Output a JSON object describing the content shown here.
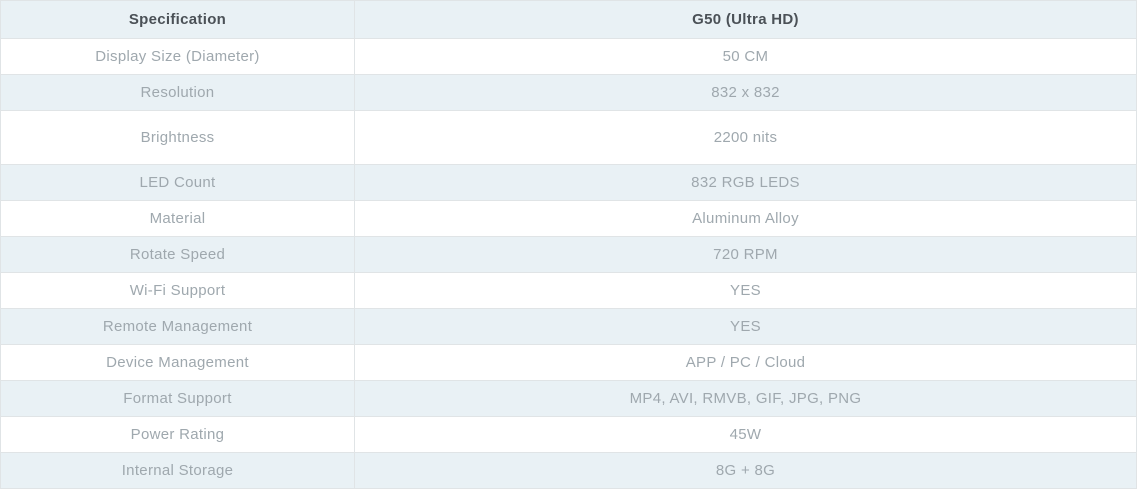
{
  "table": {
    "columns": [
      {
        "label": "Specification"
      },
      {
        "label": "G50 (Ultra HD)"
      }
    ],
    "rows": [
      {
        "spec": "Display Size (Diameter)",
        "value": "50 CM"
      },
      {
        "spec": "Resolution",
        "value": "832 x 832"
      },
      {
        "spec": "Brightness",
        "value": "2200 nits"
      },
      {
        "spec": "LED Count",
        "value": "832 RGB LEDS"
      },
      {
        "spec": "Material",
        "value": "Aluminum Alloy"
      },
      {
        "spec": "Rotate Speed",
        "value": "720 RPM"
      },
      {
        "spec": "Wi-Fi Support",
        "value": "YES"
      },
      {
        "spec": "Remote Management",
        "value": "YES"
      },
      {
        "spec": "Device Management",
        "value": "APP / PC / Cloud"
      },
      {
        "spec": "Format Support",
        "value": "MP4, AVI, RMVB, GIF, JPG, PNG"
      },
      {
        "spec": "Power Rating",
        "value": "45W"
      },
      {
        "spec": "Internal Storage",
        "value": "8G + 8G"
      }
    ],
    "colors": {
      "stripe": "#e9f1f5",
      "border": "#e0e4e6",
      "header_text": "#4b5157",
      "cell_text": "#9fa8ae"
    }
  }
}
